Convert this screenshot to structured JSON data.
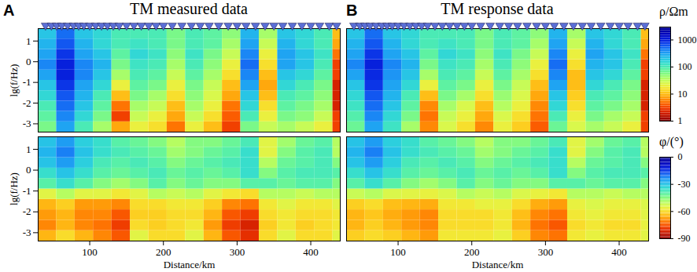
{
  "chart_data": [
    {
      "type": "heatmap",
      "panel_label": "A",
      "title": "TM measured data",
      "y_label": "lg(f/Hz)",
      "log": true,
      "tick_labels": "y",
      "xlim": [
        30,
        440
      ],
      "ylim": [
        -3.4,
        1.6
      ],
      "yticks": [
        1,
        0,
        -1,
        -2,
        -3
      ],
      "stations": [
        40,
        48,
        55,
        62,
        70,
        78,
        85,
        92,
        100,
        108,
        116,
        124,
        132,
        140,
        150,
        160,
        170,
        180,
        190,
        200,
        212,
        225,
        238,
        250,
        262,
        275,
        288,
        300,
        312,
        325,
        338,
        350,
        362,
        375,
        388,
        400,
        412,
        425,
        435
      ],
      "x_edges": [
        30,
        55,
        80,
        105,
        130,
        155,
        180,
        205,
        230,
        255,
        280,
        305,
        330,
        355,
        380,
        405,
        430,
        440
      ],
      "y_edges": [
        -3.4,
        -2.9,
        -2.4,
        -1.9,
        -1.4,
        -0.9,
        -0.4,
        0.1,
        0.6,
        1.1,
        1.6
      ],
      "values": [
        [
          60,
          300,
          100,
          40,
          8,
          20,
          15,
          5,
          20,
          10,
          3,
          60,
          30,
          40,
          30,
          20,
          3
        ],
        [
          80,
          400,
          150,
          60,
          3,
          30,
          20,
          8,
          30,
          15,
          4,
          100,
          20,
          60,
          50,
          30,
          3
        ],
        [
          100,
          500,
          200,
          80,
          5,
          40,
          30,
          10,
          40,
          20,
          5,
          150,
          15,
          80,
          60,
          40,
          2
        ],
        [
          150,
          600,
          250,
          100,
          10,
          60,
          40,
          15,
          50,
          25,
          8,
          200,
          10,
          100,
          80,
          50,
          2
        ],
        [
          200,
          800,
          300,
          150,
          20,
          80,
          60,
          20,
          60,
          30,
          10,
          300,
          8,
          150,
          100,
          60,
          2
        ],
        [
          300,
          1000,
          400,
          200,
          40,
          100,
          80,
          30,
          80,
          40,
          15,
          400,
          10,
          200,
          150,
          80,
          3
        ],
        [
          400,
          1000,
          400,
          250,
          60,
          120,
          100,
          40,
          100,
          50,
          20,
          500,
          15,
          300,
          200,
          100,
          3
        ],
        [
          300,
          800,
          300,
          200,
          80,
          150,
          120,
          50,
          120,
          60,
          30,
          400,
          20,
          300,
          200,
          120,
          5
        ],
        [
          250,
          600,
          250,
          150,
          100,
          120,
          100,
          60,
          100,
          80,
          40,
          300,
          30,
          250,
          150,
          100,
          8
        ],
        [
          200,
          500,
          200,
          150,
          100,
          100,
          100,
          60,
          100,
          80,
          50,
          250,
          40,
          200,
          150,
          100,
          10
        ]
      ]
    },
    {
      "type": "heatmap",
      "y_label": "lg(f/Hz)",
      "x_label": "Distance/km",
      "tick_labels": true,
      "xlim": [
        30,
        440
      ],
      "ylim": [
        -3.4,
        1.6
      ],
      "xticks": [
        100,
        200,
        300,
        400
      ],
      "yticks": [
        1,
        0,
        -1,
        -2,
        -3
      ],
      "x_edges": [
        30,
        55,
        80,
        105,
        130,
        155,
        180,
        205,
        230,
        255,
        280,
        305,
        330,
        355,
        380,
        405,
        430,
        440
      ],
      "y_edges": [
        -3.4,
        -2.9,
        -2.4,
        -1.9,
        -1.4,
        -0.9,
        -0.4,
        0.1,
        0.6,
        1.1,
        1.6
      ],
      "values": [
        [
          -65,
          -60,
          -65,
          -70,
          -75,
          -55,
          -60,
          -60,
          -55,
          -65,
          -75,
          -80,
          -60,
          -55,
          -60,
          -60,
          -55
        ],
        [
          -70,
          -65,
          -70,
          -72,
          -78,
          -60,
          -62,
          -60,
          -58,
          -68,
          -78,
          -82,
          -62,
          -58,
          -62,
          -60,
          -58
        ],
        [
          -68,
          -65,
          -70,
          -70,
          -75,
          -62,
          -62,
          -60,
          -60,
          -65,
          -75,
          -78,
          -60,
          -58,
          -60,
          -60,
          -58
        ],
        [
          -65,
          -62,
          -68,
          -68,
          -70,
          -60,
          -60,
          -58,
          -58,
          -62,
          -70,
          -72,
          -58,
          -55,
          -58,
          -58,
          -55
        ],
        [
          -55,
          -50,
          -55,
          -55,
          -58,
          -55,
          -50,
          -52,
          -50,
          -55,
          -58,
          -60,
          -50,
          -50,
          -52,
          -50,
          -50
        ],
        [
          -40,
          -35,
          -40,
          -45,
          -48,
          -45,
          -40,
          -45,
          -42,
          -45,
          -45,
          -40,
          -40,
          -42,
          -40,
          -40,
          -45
        ],
        [
          -35,
          -30,
          -35,
          -40,
          -42,
          -40,
          -38,
          -42,
          -40,
          -42,
          -40,
          -35,
          -45,
          -40,
          -38,
          -38,
          -40
        ],
        [
          -30,
          -25,
          -32,
          -38,
          -40,
          -38,
          -40,
          -45,
          -42,
          -40,
          -38,
          -35,
          -50,
          -42,
          -40,
          -38,
          -45
        ],
        [
          -28,
          -22,
          -30,
          -35,
          -38,
          -40,
          -42,
          -48,
          -45,
          -42,
          -40,
          -35,
          -55,
          -45,
          -40,
          -38,
          -50
        ],
        [
          -30,
          -25,
          -32,
          -35,
          -40,
          -42,
          -45,
          -50,
          -45,
          -45,
          -42,
          -38,
          -55,
          -48,
          -42,
          -40,
          -50
        ]
      ]
    },
    {
      "type": "heatmap",
      "panel_label": "B",
      "title": "TM response data",
      "log": true,
      "tick_labels": false,
      "xlim": [
        30,
        440
      ],
      "ylim": [
        -3.4,
        1.6
      ],
      "stations": [
        40,
        48,
        55,
        62,
        70,
        78,
        85,
        92,
        100,
        108,
        116,
        124,
        132,
        140,
        150,
        160,
        170,
        180,
        190,
        200,
        212,
        225,
        238,
        250,
        262,
        275,
        288,
        300,
        312,
        325,
        338,
        350,
        362,
        375,
        388,
        400,
        412,
        425,
        435
      ],
      "colorbar": {
        "label": "ρ/Ωm",
        "lim": [
          1,
          3000
        ],
        "ticks": [
          1,
          10,
          100,
          1000
        ]
      },
      "x_edges": [
        30,
        55,
        80,
        105,
        130,
        155,
        180,
        205,
        230,
        255,
        280,
        305,
        330,
        355,
        380,
        405,
        430,
        440
      ],
      "y_edges": [
        -3.4,
        -2.9,
        -2.4,
        -1.9,
        -1.4,
        -0.9,
        -0.4,
        0.1,
        0.6,
        1.1,
        1.6
      ],
      "values": [
        [
          70,
          300,
          120,
          40,
          6,
          25,
          15,
          6,
          20,
          12,
          4,
          70,
          25,
          40,
          30,
          20,
          3
        ],
        [
          90,
          400,
          150,
          60,
          5,
          30,
          20,
          8,
          25,
          15,
          5,
          100,
          20,
          60,
          40,
          30,
          3
        ],
        [
          120,
          500,
          200,
          80,
          6,
          40,
          25,
          10,
          35,
          20,
          6,
          150,
          15,
          80,
          60,
          40,
          2
        ],
        [
          150,
          600,
          250,
          100,
          10,
          60,
          40,
          15,
          45,
          25,
          8,
          200,
          12,
          100,
          80,
          50,
          2
        ],
        [
          200,
          800,
          300,
          150,
          20,
          80,
          60,
          20,
          60,
          30,
          10,
          300,
          10,
          150,
          100,
          60,
          2
        ],
        [
          300,
          900,
          350,
          200,
          40,
          100,
          80,
          30,
          80,
          40,
          15,
          400,
          10,
          200,
          150,
          80,
          3
        ],
        [
          400,
          1000,
          400,
          250,
          60,
          120,
          100,
          40,
          100,
          50,
          20,
          500,
          15,
          250,
          200,
          100,
          3
        ],
        [
          300,
          800,
          300,
          200,
          80,
          150,
          120,
          50,
          120,
          60,
          30,
          400,
          20,
          300,
          200,
          120,
          5
        ],
        [
          250,
          600,
          250,
          150,
          100,
          120,
          100,
          60,
          100,
          80,
          40,
          300,
          30,
          250,
          150,
          100,
          8
        ],
        [
          200,
          500,
          200,
          150,
          100,
          100,
          100,
          60,
          100,
          80,
          50,
          250,
          40,
          200,
          150,
          100,
          10
        ]
      ]
    },
    {
      "type": "heatmap",
      "x_label": "Distance/km",
      "tick_labels": "x",
      "xlim": [
        30,
        440
      ],
      "ylim": [
        -3.4,
        1.6
      ],
      "xticks": [
        100,
        200,
        300,
        400
      ],
      "colorbar": {
        "label": "φ/(°)",
        "lim": [
          -90,
          0
        ],
        "ticks": [
          0,
          -30,
          -60,
          -90
        ]
      },
      "x_edges": [
        30,
        55,
        80,
        105,
        130,
        155,
        180,
        205,
        230,
        255,
        280,
        305,
        330,
        355,
        380,
        405,
        430,
        440
      ],
      "y_edges": [
        -3.4,
        -2.9,
        -2.4,
        -1.9,
        -1.4,
        -0.9,
        -0.4,
        0.1,
        0.6,
        1.1,
        1.6
      ],
      "values": [
        [
          -62,
          -60,
          -62,
          -65,
          -68,
          -58,
          -58,
          -58,
          -56,
          -62,
          -70,
          -72,
          -58,
          -56,
          -58,
          -58,
          -55
        ],
        [
          -65,
          -62,
          -65,
          -68,
          -70,
          -60,
          -60,
          -60,
          -58,
          -65,
          -72,
          -75,
          -60,
          -58,
          -60,
          -60,
          -56
        ],
        [
          -65,
          -63,
          -66,
          -68,
          -70,
          -60,
          -60,
          -60,
          -58,
          -64,
          -70,
          -72,
          -58,
          -56,
          -58,
          -58,
          -55
        ],
        [
          -62,
          -60,
          -64,
          -65,
          -66,
          -58,
          -58,
          -56,
          -56,
          -60,
          -66,
          -68,
          -56,
          -54,
          -56,
          -56,
          -54
        ],
        [
          -52,
          -50,
          -54,
          -55,
          -56,
          -54,
          -50,
          -52,
          -50,
          -54,
          -56,
          -58,
          -50,
          -50,
          -52,
          -50,
          -50
        ],
        [
          -40,
          -35,
          -40,
          -45,
          -48,
          -45,
          -40,
          -45,
          -42,
          -45,
          -45,
          -40,
          -40,
          -42,
          -40,
          -40,
          -45
        ],
        [
          -35,
          -30,
          -35,
          -40,
          -42,
          -40,
          -38,
          -42,
          -40,
          -42,
          -40,
          -35,
          -45,
          -40,
          -38,
          -38,
          -40
        ],
        [
          -30,
          -25,
          -32,
          -38,
          -40,
          -38,
          -40,
          -45,
          -42,
          -40,
          -38,
          -35,
          -50,
          -42,
          -40,
          -38,
          -45
        ],
        [
          -28,
          -22,
          -30,
          -35,
          -38,
          -40,
          -42,
          -48,
          -45,
          -42,
          -40,
          -35,
          -55,
          -45,
          -40,
          -38,
          -50
        ],
        [
          -30,
          -25,
          -32,
          -35,
          -40,
          -42,
          -45,
          -50,
          -45,
          -45,
          -42,
          -38,
          -55,
          -48,
          -42,
          -40,
          -50
        ]
      ]
    }
  ]
}
